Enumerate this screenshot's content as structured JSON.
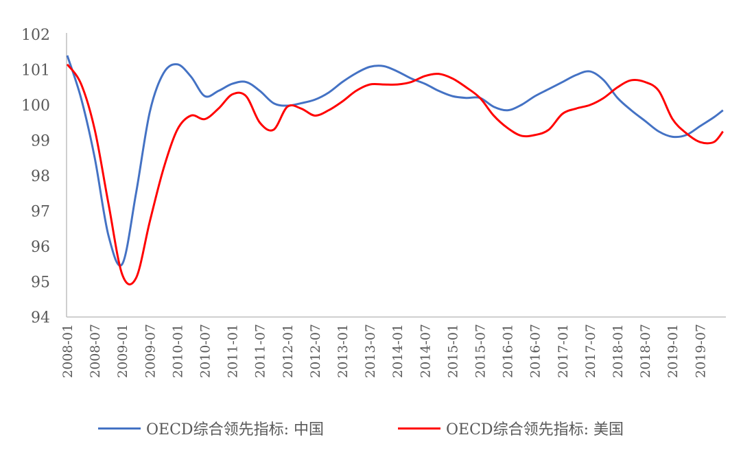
{
  "chart_data": {
    "type": "line",
    "title": "",
    "xlabel": "",
    "ylabel": "",
    "ylim": [
      94,
      102
    ],
    "yticks": [
      "94",
      "95",
      "96",
      "97",
      "98",
      "99",
      "100",
      "101",
      "102"
    ],
    "xtick_labels": [
      "2008-01",
      "2008-07",
      "2009-01",
      "2009-07",
      "2010-01",
      "2010-07",
      "2011-01",
      "2011-07",
      "2012-01",
      "2012-07",
      "2013-01",
      "2013-07",
      "2014-01",
      "2014-07",
      "2015-01",
      "2015-07",
      "2016-01",
      "2016-07",
      "2017-01",
      "2017-07",
      "2018-01",
      "2018-07",
      "2019-01",
      "2019-07"
    ],
    "grid": false,
    "legend_position": "bottom",
    "x": [
      "2008-01",
      "2008-04",
      "2008-07",
      "2008-10",
      "2009-01",
      "2009-04",
      "2009-07",
      "2009-10",
      "2010-01",
      "2010-04",
      "2010-07",
      "2010-10",
      "2011-01",
      "2011-04",
      "2011-07",
      "2011-10",
      "2012-01",
      "2012-04",
      "2012-07",
      "2012-10",
      "2013-01",
      "2013-04",
      "2013-07",
      "2013-10",
      "2014-01",
      "2014-04",
      "2014-07",
      "2014-10",
      "2015-01",
      "2015-04",
      "2015-07",
      "2015-10",
      "2016-01",
      "2016-04",
      "2016-07",
      "2016-10",
      "2017-01",
      "2017-04",
      "2017-07",
      "2017-10",
      "2018-01",
      "2018-04",
      "2018-07",
      "2018-10",
      "2019-01",
      "2019-04",
      "2019-07",
      "2019-10",
      "2019-12"
    ],
    "series": [
      {
        "name": "OECD综合领先指标: 中国",
        "color": "#4472C4",
        "values": [
          101.4,
          100.2,
          98.5,
          96.3,
          95.5,
          97.5,
          99.8,
          100.9,
          101.15,
          100.8,
          100.25,
          100.4,
          100.6,
          100.65,
          100.4,
          100.05,
          99.98,
          100.05,
          100.15,
          100.35,
          100.65,
          100.9,
          101.08,
          101.1,
          100.95,
          100.75,
          100.6,
          100.4,
          100.25,
          100.2,
          100.2,
          99.95,
          99.85,
          100.0,
          100.25,
          100.45,
          100.65,
          100.85,
          100.95,
          100.7,
          100.2,
          99.85,
          99.55,
          99.25,
          99.1,
          99.15,
          99.4,
          99.65,
          99.85
        ]
      },
      {
        "name": "OECD综合领先指标: 美国",
        "color": "#FF0000",
        "values": [
          101.15,
          100.6,
          99.3,
          97.2,
          95.2,
          95.1,
          96.7,
          98.2,
          99.3,
          99.7,
          99.6,
          99.9,
          100.3,
          100.25,
          99.5,
          99.3,
          99.95,
          99.9,
          99.7,
          99.85,
          100.1,
          100.4,
          100.58,
          100.58,
          100.58,
          100.65,
          100.82,
          100.88,
          100.75,
          100.5,
          100.2,
          99.7,
          99.35,
          99.13,
          99.15,
          99.3,
          99.75,
          99.9,
          100.0,
          100.2,
          100.5,
          100.7,
          100.65,
          100.4,
          99.6,
          99.2,
          98.95,
          98.95,
          99.25
        ]
      }
    ]
  }
}
